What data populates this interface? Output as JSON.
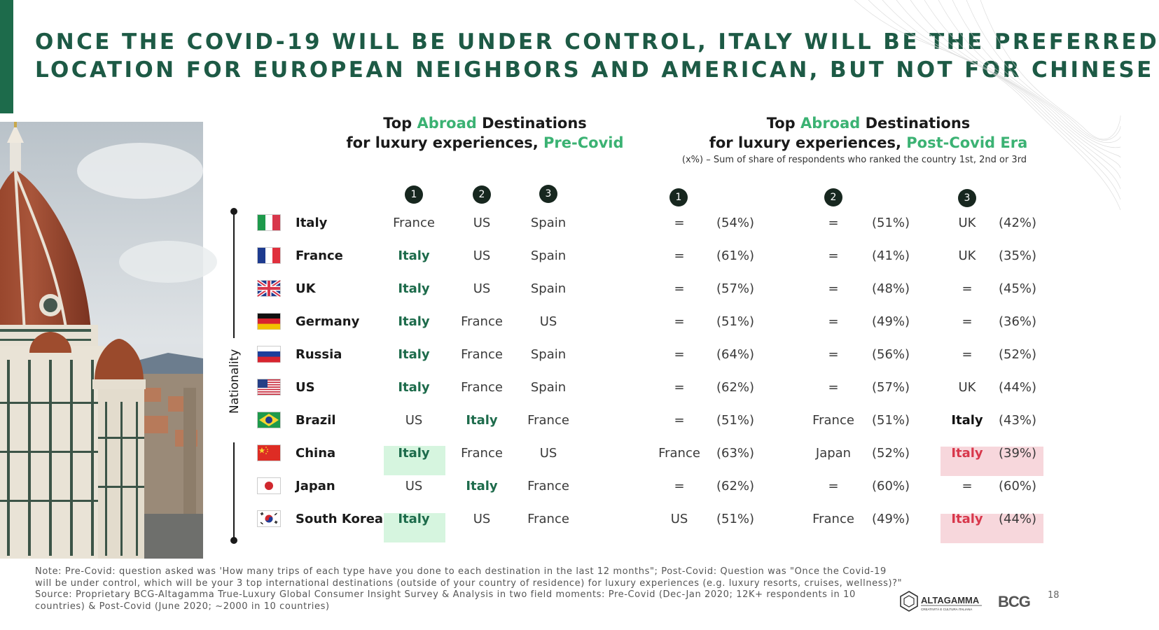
{
  "title": {
    "line1": "ONCE THE COVID-19 WILL BE UNDER CONTROL, ITALY WILL BE THE PREFERRED",
    "line2": "LOCATION FOR EUROPEAN NEIGHBORS AND AMERICAN, BUT NOT FOR CHINESE"
  },
  "pre_header": {
    "a": "Top ",
    "b": "Abroad",
    "c": " Destinations",
    "d": "for luxury experiences, ",
    "e": "Pre-Covid"
  },
  "post_header": {
    "a": "Top ",
    "b": "Abroad",
    "c": " Destinations",
    "d": "for luxury experiences, ",
    "e": "Post-Covid Era"
  },
  "post_note": "(x%) – Sum of share of respondents who ranked the country 1st, 2nd or 3rd",
  "ranks": [
    "1",
    "2",
    "3"
  ],
  "axis_label": "Nationality",
  "rows": [
    {
      "country": "Italy",
      "flag": "italy",
      "pre": [
        "France",
        "US",
        "Spain"
      ],
      "post": [
        "=",
        "(54%)",
        "=",
        "(51%)",
        "UK",
        "(42%)"
      ]
    },
    {
      "country": "France",
      "flag": "france",
      "pre": [
        "Italy",
        "US",
        "Spain"
      ],
      "post": [
        "=",
        "(61%)",
        "=",
        "(41%)",
        "UK",
        "(35%)"
      ]
    },
    {
      "country": "UK",
      "flag": "uk",
      "pre": [
        "Italy",
        "US",
        "Spain"
      ],
      "post": [
        "=",
        "(57%)",
        "=",
        "(48%)",
        "=",
        "(45%)"
      ]
    },
    {
      "country": "Germany",
      "flag": "germany",
      "pre": [
        "Italy",
        "France",
        "US"
      ],
      "post": [
        "=",
        "(51%)",
        "=",
        "(49%)",
        "=",
        "(36%)"
      ]
    },
    {
      "country": "Russia",
      "flag": "russia",
      "pre": [
        "Italy",
        "France",
        "Spain"
      ],
      "post": [
        "=",
        "(64%)",
        "=",
        "(56%)",
        "=",
        "(52%)"
      ]
    },
    {
      "country": "US",
      "flag": "us",
      "pre": [
        "Italy",
        "France",
        "Spain"
      ],
      "post": [
        "=",
        "(62%)",
        "=",
        "(57%)",
        "UK",
        "(44%)"
      ]
    },
    {
      "country": "Brazil",
      "flag": "brazil",
      "pre": [
        "US",
        "Italy",
        "France"
      ],
      "post": [
        "=",
        "(51%)",
        "France",
        "(51%)",
        "Italy",
        "(43%)"
      ]
    },
    {
      "country": "China",
      "flag": "china",
      "pre": [
        "Italy",
        "France",
        "US"
      ],
      "post": [
        "France",
        "(63%)",
        "Japan",
        "(52%)",
        "Italy",
        "(39%)"
      ]
    },
    {
      "country": "Japan",
      "flag": "japan",
      "pre": [
        "US",
        "Italy",
        "France"
      ],
      "post": [
        "=",
        "(62%)",
        "=",
        "(60%)",
        "=",
        "(60%)"
      ]
    },
    {
      "country": "South Korea",
      "flag": "south-korea",
      "pre": [
        "Italy",
        "US",
        "France"
      ],
      "post": [
        "US",
        "(51%)",
        "France",
        "(49%)",
        "Italy",
        "(44%)"
      ]
    }
  ],
  "footnote": {
    "line1": "Note: Pre-Covid: question asked was 'How many trips of each type have you done to each destination in the last 12 months\"; Post-Covid: Question was \"Once the Covid-19",
    "line2": "will be under control, which will be your 3 top international destinations (outside of your country of residence) for luxury experiences (e.g. luxury resorts, cruises, wellness)?\"",
    "line3": "Source: Proprietary BCG-Altagamma True-Luxury Global Consumer Insight Survey & Analysis in two field moments: Pre-Covid (Dec-Jan 2020; 12K+ respondents in 10",
    "line4": "countries) & Post-Covid (June 2020; ~2000 in 10 countries)"
  },
  "logos": {
    "altagamma": "ALTAGAMMA",
    "altagamma_sub": "CREATIVITÀ E CULTURA ITALIANA",
    "bcg": "BCG"
  },
  "page_number": "18",
  "colors": {
    "brand_green": "#1d6b4b",
    "highlight_green": "#3bb273",
    "italy_red": "#d8374b",
    "green_bg": "#d6f5df",
    "pink_bg": "#f7d7dc"
  }
}
